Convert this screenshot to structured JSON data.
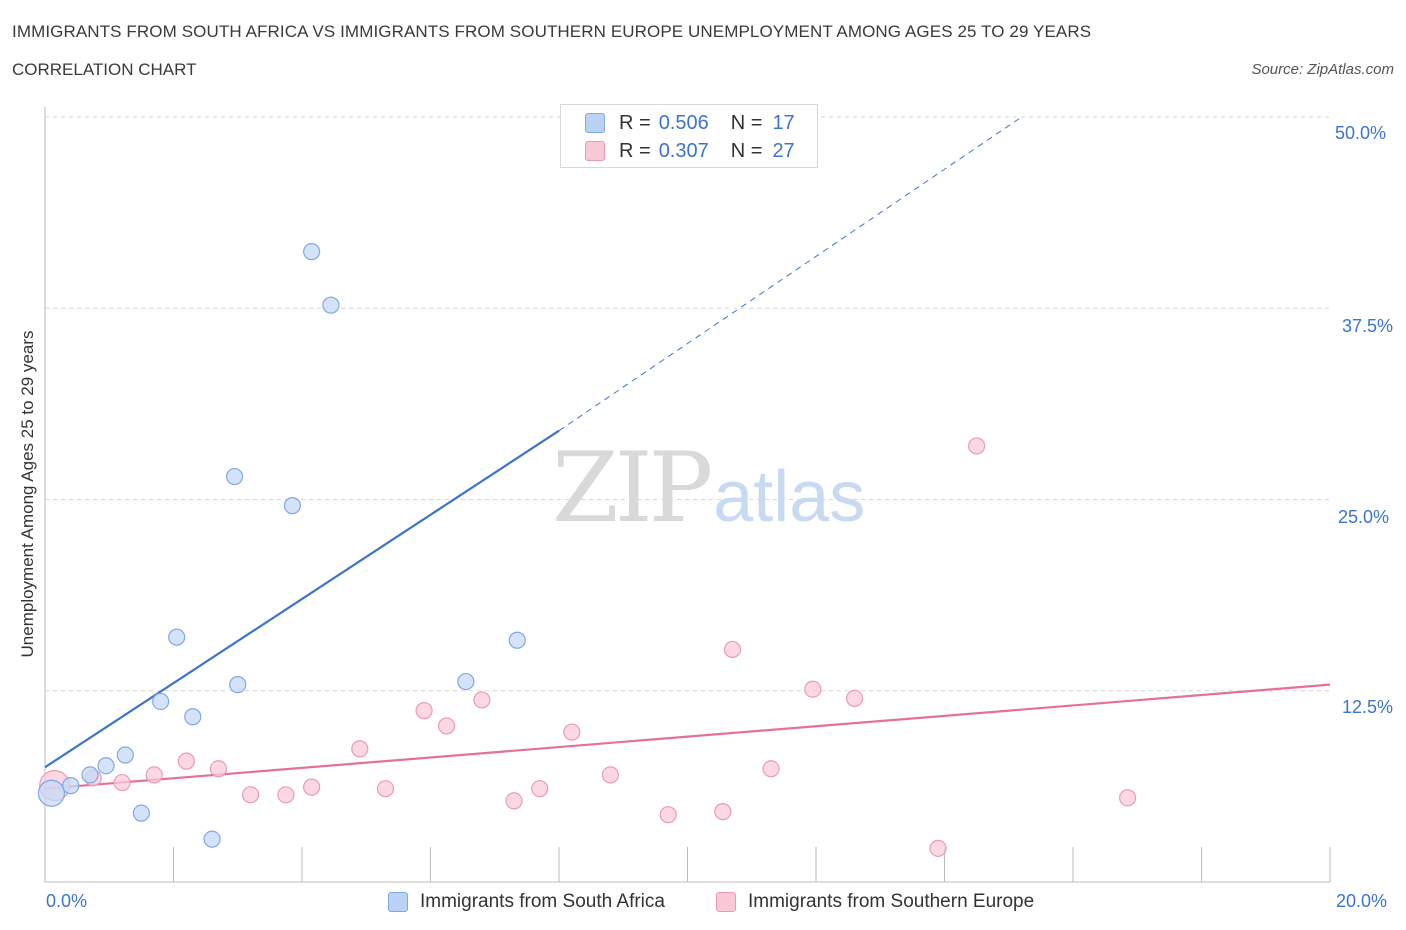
{
  "title": "IMMIGRANTS FROM SOUTH AFRICA VS IMMIGRANTS FROM SOUTHERN EUROPE UNEMPLOYMENT AMONG AGES 25 TO 29 YEARS",
  "subtitle": "CORRELATION CHART",
  "source": "Source: ZipAtlas.com",
  "watermark": {
    "zip": "ZIP",
    "atlas": "atlas"
  },
  "legend_top": {
    "rows": [
      {
        "r_label": "R =",
        "r_value": "0.506",
        "n_label": "N =",
        "n_value": "17"
      },
      {
        "r_label": "R =",
        "r_value": "0.307",
        "n_label": "N =",
        "n_value": "27"
      }
    ]
  },
  "chart_data": {
    "type": "scatter",
    "xlabel": "",
    "ylabel": "Unemployment Among Ages 25 to 29 years",
    "xlim": [
      0,
      20
    ],
    "ylim": [
      0,
      50
    ],
    "x_tick_labels": [
      {
        "value": 0,
        "label": "0.0%"
      },
      {
        "value": 20,
        "label": "20.0%"
      }
    ],
    "y_tick_labels": [
      {
        "value": 12.5,
        "label": "12.5%"
      },
      {
        "value": 25,
        "label": "25.0%"
      },
      {
        "value": 37.5,
        "label": "37.5%"
      },
      {
        "value": 50,
        "label": "50.0%"
      }
    ],
    "grid": true,
    "legend_placement": "bottom",
    "series": [
      {
        "name": "Immigrants from South Africa",
        "color": "#3b74cc",
        "fill": "#c5daf6",
        "stroke": "#7fa8e6",
        "r": 0.506,
        "n": 17,
        "trend": {
          "x0": 0,
          "y0": 7.5,
          "x1": 8,
          "y1": 29.5,
          "dashed_to_x": 15.2,
          "dashed_to_y": 50
        },
        "points": [
          {
            "x": 0.1,
            "y": 5.8,
            "size": 13
          },
          {
            "x": 0.4,
            "y": 6.3,
            "size": 8
          },
          {
            "x": 0.7,
            "y": 7.0,
            "size": 8
          },
          {
            "x": 0.95,
            "y": 7.6,
            "size": 8
          },
          {
            "x": 1.25,
            "y": 8.3,
            "size": 8
          },
          {
            "x": 1.5,
            "y": 4.5,
            "size": 8
          },
          {
            "x": 1.8,
            "y": 11.8,
            "size": 8
          },
          {
            "x": 2.05,
            "y": 16.0,
            "size": 8
          },
          {
            "x": 2.3,
            "y": 10.8,
            "size": 8
          },
          {
            "x": 2.6,
            "y": 2.8,
            "size": 8
          },
          {
            "x": 2.95,
            "y": 26.5,
            "size": 8
          },
          {
            "x": 3.0,
            "y": 12.9,
            "size": 8
          },
          {
            "x": 3.85,
            "y": 24.6,
            "size": 8
          },
          {
            "x": 4.15,
            "y": 41.2,
            "size": 8
          },
          {
            "x": 4.45,
            "y": 37.7,
            "size": 8
          },
          {
            "x": 6.55,
            "y": 13.1,
            "size": 8
          },
          {
            "x": 7.35,
            "y": 15.8,
            "size": 8
          }
        ]
      },
      {
        "name": "Immigrants from Southern Europe",
        "color": "#e6709a",
        "fill": "#f9cbd9",
        "stroke": "#ec9ab3",
        "r": 0.307,
        "n": 27,
        "trend": {
          "x0": 0,
          "y0": 6.1,
          "x1": 20,
          "y1": 12.9
        },
        "points": [
          {
            "x": 0.15,
            "y": 6.3,
            "size": 15
          },
          {
            "x": 0.75,
            "y": 6.8,
            "size": 8
          },
          {
            "x": 1.2,
            "y": 6.5,
            "size": 8
          },
          {
            "x": 1.7,
            "y": 7.0,
            "size": 8
          },
          {
            "x": 2.2,
            "y": 7.9,
            "size": 8
          },
          {
            "x": 2.7,
            "y": 7.4,
            "size": 8
          },
          {
            "x": 3.2,
            "y": 5.7,
            "size": 8
          },
          {
            "x": 3.75,
            "y": 5.7,
            "size": 8
          },
          {
            "x": 4.15,
            "y": 6.2,
            "size": 8
          },
          {
            "x": 4.9,
            "y": 8.7,
            "size": 8
          },
          {
            "x": 5.3,
            "y": 6.1,
            "size": 8
          },
          {
            "x": 5.9,
            "y": 11.2,
            "size": 8
          },
          {
            "x": 6.25,
            "y": 10.2,
            "size": 8
          },
          {
            "x": 6.8,
            "y": 11.9,
            "size": 8
          },
          {
            "x": 7.3,
            "y": 5.3,
            "size": 8
          },
          {
            "x": 7.7,
            "y": 6.1,
            "size": 8
          },
          {
            "x": 8.2,
            "y": 9.8,
            "size": 8
          },
          {
            "x": 8.8,
            "y": 7.0,
            "size": 8
          },
          {
            "x": 9.7,
            "y": 4.4,
            "size": 8
          },
          {
            "x": 10.55,
            "y": 4.6,
            "size": 8
          },
          {
            "x": 10.7,
            "y": 15.2,
            "size": 8
          },
          {
            "x": 11.3,
            "y": 7.4,
            "size": 8
          },
          {
            "x": 11.95,
            "y": 12.6,
            "size": 8
          },
          {
            "x": 12.6,
            "y": 12.0,
            "size": 8
          },
          {
            "x": 13.9,
            "y": 2.2,
            "size": 8
          },
          {
            "x": 14.5,
            "y": 28.5,
            "size": 8
          },
          {
            "x": 16.85,
            "y": 5.5,
            "size": 8
          }
        ]
      }
    ]
  }
}
